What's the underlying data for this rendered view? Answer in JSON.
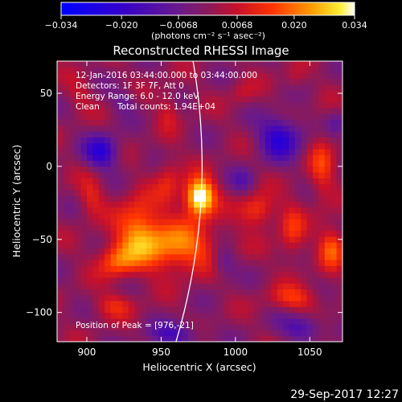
{
  "colorbar": {
    "ticks": [
      "−0.034",
      "−0.020",
      "−0.0068",
      "0.0068",
      "0.020",
      "0.034"
    ],
    "tick_values": [
      -0.034,
      -0.02,
      -0.0068,
      0.0068,
      0.02,
      0.034
    ],
    "range": [
      -0.034,
      0.034
    ],
    "unit_label": "(photons cm⁻² s⁻¹ asec⁻²)",
    "colormap": "rainbow-hot (blue-purple-red-orange-yellow-white)"
  },
  "chart_data": {
    "type": "heatmap",
    "title": "Reconstructed RHESSI Image",
    "xlabel": "Heliocentric X (arcsec)",
    "ylabel": "Heliocentric Y (arcsec)",
    "xlim": [
      880,
      1072
    ],
    "ylim": [
      -120,
      72
    ],
    "x_ticks": [
      900,
      950,
      1000,
      1050
    ],
    "y_ticks": [
      50,
      0,
      -50,
      -100
    ],
    "y_tick_labels": [
      "50",
      "0",
      "−50",
      "−100"
    ],
    "peak": {
      "x": 976,
      "y": -21,
      "value": 0.034
    },
    "limb_line": true,
    "annotations": {
      "time": "12-Jan-2016 03:44:00.000 to 03:44:00.000",
      "detectors": "Detectors: 1F 3F 7F, Att 0",
      "energy": "Energy Range: 6.0 - 12.0 keV",
      "method": "Clean",
      "counts": "Total counts: 1.94E+04",
      "peak_label": "Position of Peak = [976,-21]"
    }
  },
  "footer": {
    "timestamp": "29-Sep-2017 12:27"
  }
}
